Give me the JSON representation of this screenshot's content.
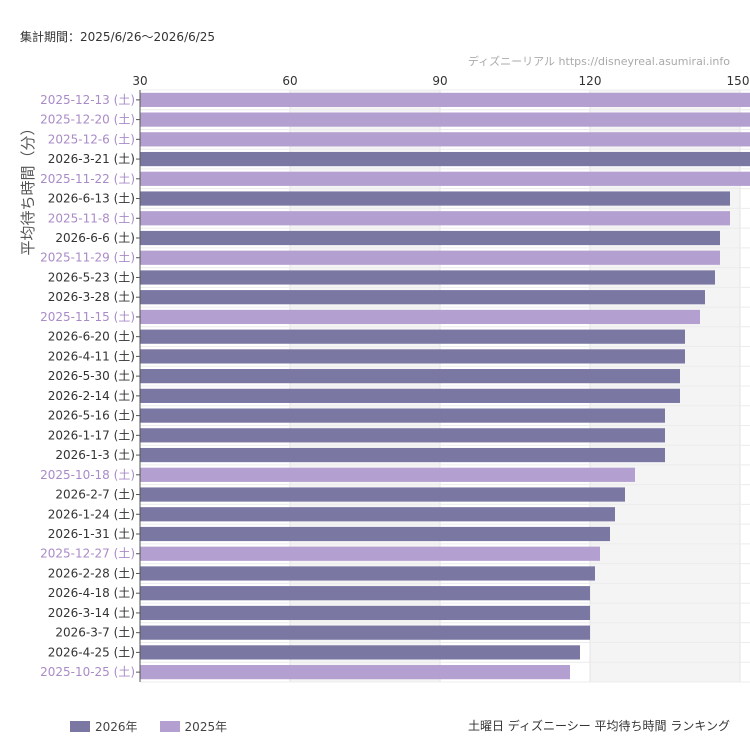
{
  "header": {
    "period": "集計期間：2025/6/26〜2026/6/25",
    "source": "ディズニーリアル https://disneyreal.asumirai.info"
  },
  "footer": {
    "title": "土曜日 ディズニーシー 平均待ち時間 ランキング"
  },
  "colors": {
    "2026年": "#7b77a3",
    "2025年": "#b39fd0",
    "label_2026": "#333333",
    "label_2025": "#a98bc8"
  },
  "chart_data": {
    "type": "bar",
    "orientation": "horizontal",
    "title": "土曜日 ディズニーシー 平均待ち時間 ランキング",
    "ylabel": "平均待ち時間（分）",
    "xlim": [
      30,
      152
    ],
    "xticks": [
      30,
      60,
      90,
      120,
      150
    ],
    "grid": true,
    "legend": {
      "placement": "bottom-left",
      "entries": [
        "2026年",
        "2025年"
      ]
    },
    "categories": [
      "2025-12-13 (土)",
      "2025-12-20 (土)",
      "2025-12-6 (土)",
      "2026-3-21 (土)",
      "2025-11-22 (土)",
      "2026-6-13 (土)",
      "2025-11-8 (土)",
      "2026-6-6 (土)",
      "2025-11-29 (土)",
      "2026-5-23 (土)",
      "2026-3-28 (土)",
      "2025-11-15 (土)",
      "2026-6-20 (土)",
      "2026-4-11 (土)",
      "2026-5-30 (土)",
      "2026-2-14 (土)",
      "2026-5-16 (土)",
      "2026-1-17 (土)",
      "2026-1-3 (土)",
      "2025-10-18 (土)",
      "2026-2-7 (土)",
      "2026-1-24 (土)",
      "2026-1-31 (土)",
      "2025-12-27 (土)",
      "2026-2-28 (土)",
      "2026-4-18 (土)",
      "2026-3-14 (土)",
      "2026-3-7 (土)",
      "2026-4-25 (土)",
      "2025-10-25 (土)"
    ],
    "values": [
      155,
      154,
      153,
      153,
      152,
      148,
      148,
      146,
      146,
      145,
      143,
      142,
      139,
      139,
      138,
      138,
      135,
      135,
      135,
      129,
      127,
      125,
      124,
      122,
      121,
      120,
      120,
      120,
      118,
      116
    ],
    "series_of_bar": [
      "2025年",
      "2025年",
      "2025年",
      "2026年",
      "2025年",
      "2026年",
      "2025年",
      "2026年",
      "2025年",
      "2026年",
      "2026年",
      "2025年",
      "2026年",
      "2026年",
      "2026年",
      "2026年",
      "2026年",
      "2026年",
      "2026年",
      "2025年",
      "2026年",
      "2026年",
      "2026年",
      "2025年",
      "2026年",
      "2026年",
      "2026年",
      "2026年",
      "2026年",
      "2025年"
    ]
  }
}
